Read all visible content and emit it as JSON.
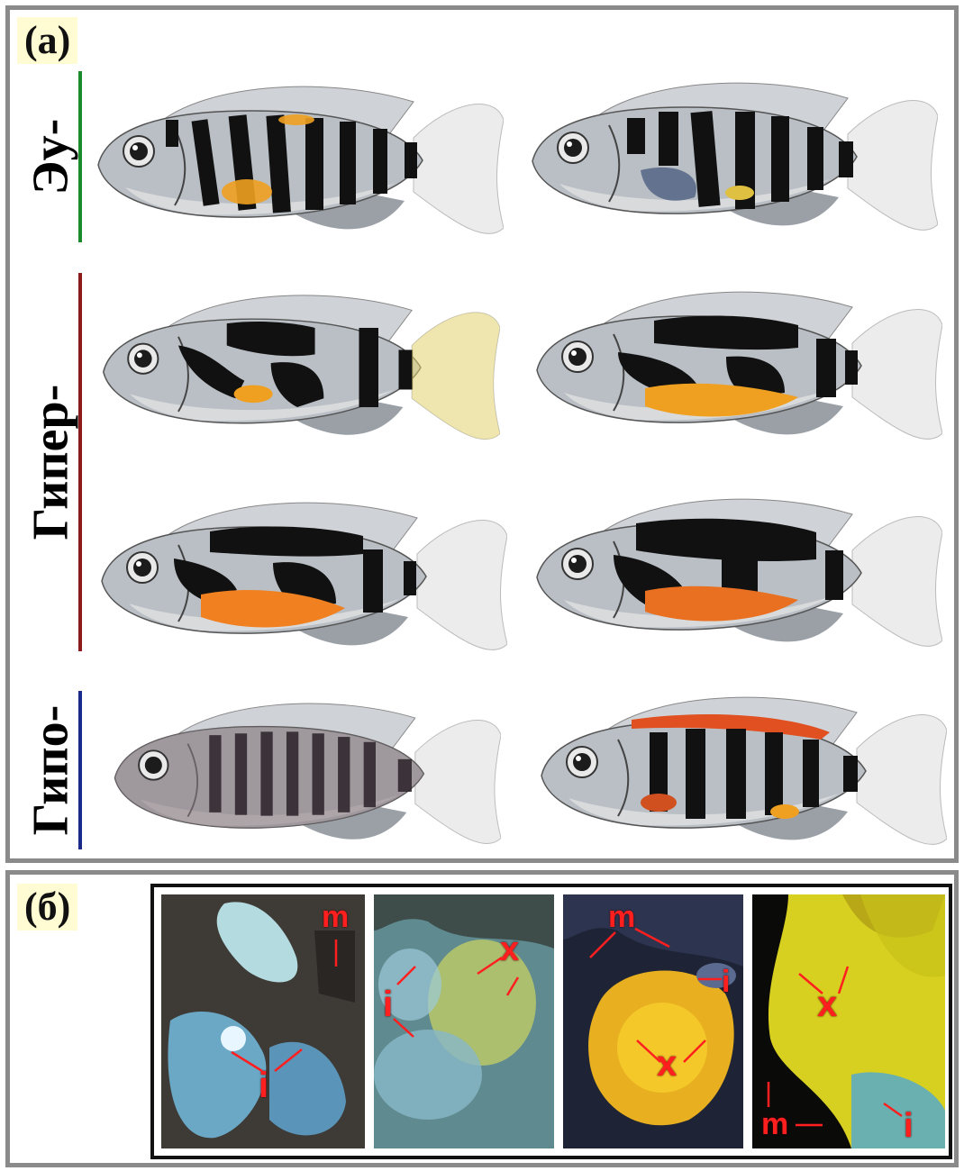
{
  "panel_a": {
    "label": "(а)",
    "groups": [
      {
        "name": "Эу-",
        "color": "#1a8a2a"
      },
      {
        "name": "Гипер-",
        "color": "#8b1a1a"
      },
      {
        "name": "Гипо-",
        "color": "#1a2a8b"
      }
    ]
  },
  "panel_b": {
    "label": "(б)",
    "annotations": {
      "m": "m",
      "i": "i",
      "x": "x"
    }
  },
  "colors": {
    "frame": "#8a8a8a",
    "label_bg": "#fffbd2",
    "annotation": "#ff1f1f",
    "melanophore": "#111111",
    "xanthophore": "#f0a020",
    "iridophore": "#7fc8d8"
  }
}
